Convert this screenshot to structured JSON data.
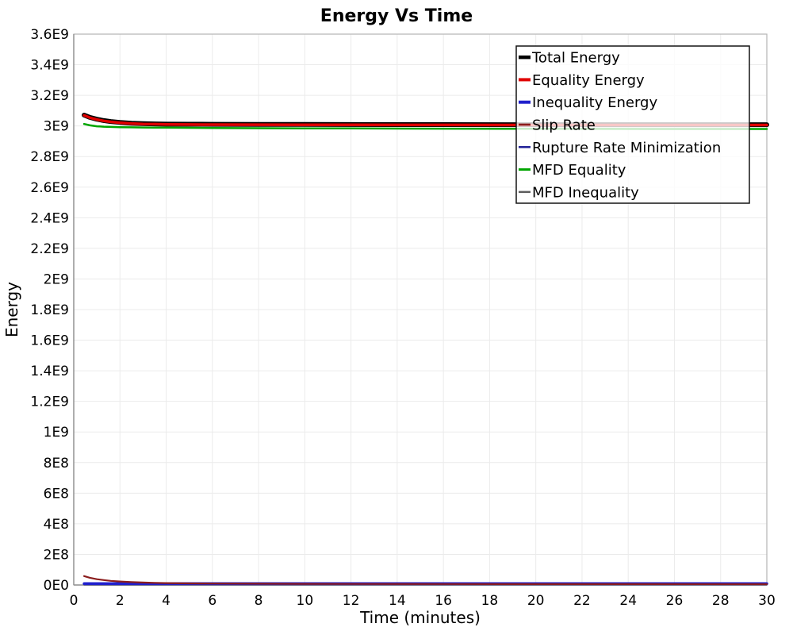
{
  "page": {
    "background_color": "#ffffff"
  },
  "chart_data": {
    "type": "line",
    "title": "Energy Vs Time",
    "xlabel": "Time (minutes)",
    "ylabel": "Energy",
    "xlim": [
      0,
      30
    ],
    "ylim": [
      0,
      3600000000.0
    ],
    "grid": true,
    "grid_color": "#ebebeb",
    "border_color": "#b5b5b5",
    "axis_color": "#919191",
    "x_ticks": [
      0,
      2,
      4,
      6,
      8,
      10,
      12,
      14,
      16,
      18,
      20,
      22,
      24,
      26,
      28,
      30
    ],
    "y_ticks": [
      0,
      200000000.0,
      400000000.0,
      600000000.0,
      800000000.0,
      1000000000.0,
      1200000000.0,
      1400000000.0,
      1600000000.0,
      1800000000.0,
      2000000000.0,
      2200000000.0,
      2400000000.0,
      2600000000.0,
      2800000000.0,
      3000000000.0,
      3200000000.0,
      3400000000.0,
      3600000000.0
    ],
    "y_tick_labels": [
      "0E0",
      "2E8",
      "4E8",
      "6E8",
      "8E8",
      "1E9",
      "1.2E9",
      "1.4E9",
      "1.6E9",
      "1.8E9",
      "2E9",
      "2.2E9",
      "2.4E9",
      "2.6E9",
      "2.8E9",
      "3E9",
      "3.2E9",
      "3.4E9",
      "3.6E9"
    ],
    "legend": {
      "position": "top-right",
      "background": "rgba(255,255,255,0.78)",
      "border_color": "#141414"
    },
    "x": [
      0.45,
      0.7,
      1,
      1.3,
      1.6,
      2,
      2.5,
      3,
      3.5,
      4,
      5,
      6,
      8,
      10,
      12,
      16,
      20,
      25,
      30
    ],
    "series": [
      {
        "name": "Total Energy",
        "color": "#000000",
        "width": 6,
        "y": [
          3071000000.0,
          3056000000.0,
          3044000000.0,
          3035000000.0,
          3029000000.0,
          3023000000.0,
          3018000000.0,
          3015000000.0,
          3013500000.0,
          3012000000.0,
          3011000000.0,
          3010500000.0,
          3010000000.0,
          3009500000.0,
          3009000000.0,
          3008500000.0,
          3008000000.0,
          3008000000.0,
          3008000000.0
        ]
      },
      {
        "name": "Equality Energy",
        "color": "#e00000",
        "width": 3.5,
        "y": [
          3069000000.0,
          3054000000.0,
          3042000000.0,
          3033000000.0,
          3027000000.0,
          3021000000.0,
          3016000000.0,
          3013000000.0,
          3011500000.0,
          3010000000.0,
          3009000000.0,
          3008500000.0,
          3008000000.0,
          3007500000.0,
          3007000000.0,
          3006500000.0,
          3006000000.0,
          3006000000.0,
          3006000000.0
        ]
      },
      {
        "name": "Inequality Energy",
        "color": "#2020cc",
        "width": 3.5,
        "y": [
          9000000.0,
          9000000.0,
          9000000.0,
          9000000.0,
          9000000.0,
          9000000.0,
          9000000.0,
          9000000.0,
          9000000.0,
          9000000.0,
          9000000.0,
          9000000.0,
          9000000.0,
          9000000.0,
          9000000.0,
          9000000.0,
          9000000.0,
          9000000.0,
          9000000.0
        ]
      },
      {
        "name": "Slip Rate",
        "color": "#8b1d1d",
        "width": 2.2,
        "y": [
          58000000.0,
          47000000.0,
          38000000.0,
          32000000.0,
          27000000.0,
          23000000.0,
          19000000.0,
          16000000.0,
          14000000.0,
          12500000.0,
          10500000.0,
          9500000.0,
          8200000.0,
          7500000.0,
          7000000.0,
          6300000.0,
          5800000.0,
          5500000.0,
          5300000.0
        ]
      },
      {
        "name": "Rupture Rate Minimization",
        "color": "#1f1f96",
        "width": 2,
        "y": [
          4000000.0,
          4000000.0,
          4000000.0,
          4000000.0,
          4000000.0,
          4000000.0,
          4000000.0,
          4000000.0,
          4000000.0,
          4000000.0,
          4000000.0,
          4000000.0,
          4000000.0,
          4000000.0,
          4000000.0,
          4000000.0,
          4000000.0,
          4000000.0,
          4000000.0
        ]
      },
      {
        "name": "MFD Equality",
        "color": "#00a500",
        "width": 2.5,
        "y": [
          3013000000.0,
          3004000000.0,
          2998000000.0,
          2995000000.0,
          2993500000.0,
          2992000000.0,
          2991000000.0,
          2990000000.0,
          2989500000.0,
          2989000000.0,
          2988000000.0,
          2987000000.0,
          2985500000.0,
          2984500000.0,
          2983500000.0,
          2982000000.0,
          2981000000.0,
          2980000000.0,
          2980000000.0
        ]
      },
      {
        "name": "MFD Inequality",
        "color": "#5c5c5c",
        "width": 2,
        "y": [
          2000000.0,
          2000000.0,
          2000000.0,
          2000000.0,
          2000000.0,
          2000000.0,
          2000000.0,
          2000000.0,
          2000000.0,
          2000000.0,
          2000000.0,
          2000000.0,
          2000000.0,
          2000000.0,
          2000000.0,
          2000000.0,
          2000000.0,
          2000000.0,
          2000000.0
        ]
      }
    ],
    "draw_order": [
      6,
      4,
      2,
      3,
      5,
      0,
      1
    ]
  }
}
